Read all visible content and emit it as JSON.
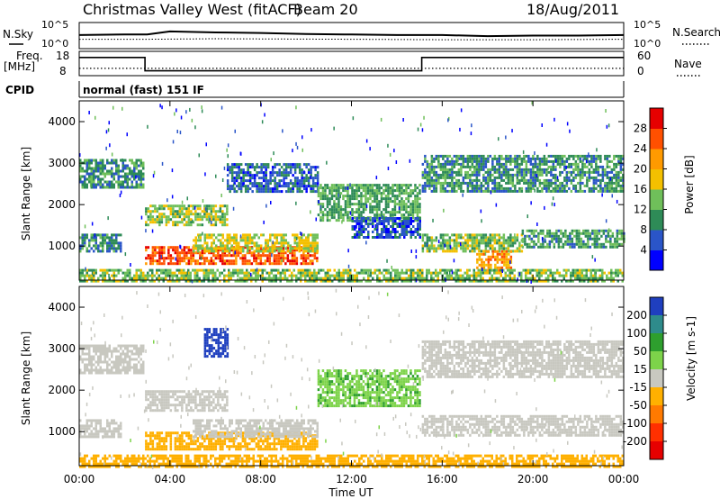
{
  "header": {
    "station": "Christmas Valley West (fitACF)",
    "beam": "Beam 20",
    "date": "18/Aug/2011"
  },
  "top_panels": {
    "nsky_label": "N.Sky",
    "nsearch_label": "N.Search",
    "noise_ticks": [
      "10^5",
      "10^0"
    ],
    "freq_label": "Freq.",
    "freq_unit": "[MHz]",
    "freq_ticks": [
      "18",
      "8"
    ],
    "nave_label": "Nave",
    "nave_ticks": [
      "60",
      "0"
    ],
    "cpid_label": "CPID",
    "cpid_text": "normal (fast) 151 IF"
  },
  "chart_data": [
    {
      "type": "line",
      "panel": "noise",
      "series": [
        {
          "name": "N.Sky",
          "x": [
            0,
            2,
            3,
            4,
            6,
            8,
            10,
            12,
            14,
            16,
            18,
            20,
            22,
            24
          ],
          "y": [
            2.6,
            2.7,
            2.7,
            3.3,
            3.1,
            3.0,
            2.8,
            2.7,
            2.6,
            2.6,
            2.4,
            2.5,
            2.5,
            2.6
          ]
        },
        {
          "name": "N.Search",
          "x": [
            0,
            3,
            6,
            12,
            16,
            20,
            24
          ],
          "y": [
            1.8,
            1.8,
            1.9,
            1.8,
            1.7,
            1.7,
            1.8
          ]
        }
      ],
      "xlim": [
        0,
        24
      ],
      "ylim": [
        0,
        5
      ],
      "yscale": "log"
    },
    {
      "type": "line",
      "panel": "frequency",
      "series": [
        {
          "name": "Freq.",
          "x": [
            0,
            2.9,
            2.9,
            15.1,
            15.1,
            24
          ],
          "y": [
            15.5,
            15.5,
            10,
            10,
            15.5,
            15.5
          ]
        },
        {
          "name": "Nave",
          "x": [
            0,
            24
          ],
          "y": [
            18,
            18
          ]
        }
      ],
      "xlim": [
        0,
        24
      ],
      "ylim": [
        8,
        18
      ],
      "y2lim": [
        0,
        60
      ]
    },
    {
      "type": "heatmap",
      "panel": "power",
      "ylabel": "Slant Range [km]",
      "yticks": [
        "1000",
        "2000",
        "3000",
        "4000"
      ],
      "xlim": [
        0,
        24
      ],
      "ylim": [
        180,
        4500
      ],
      "colorbar": {
        "label": "Power [dB]",
        "ticks": [
          "4",
          "8",
          "12",
          "16",
          "20",
          "24",
          "28"
        ],
        "colors": [
          "#0000ff",
          "#2a55c8",
          "#2e8b57",
          "#6fbf5a",
          "#f4c000",
          "#ff9a00",
          "#ff5000",
          "#e60000"
        ]
      },
      "regions": [
        {
          "t0": 0.0,
          "t1": 2.8,
          "r0": 2400,
          "r1": 3100,
          "v": 10
        },
        {
          "t0": 0.0,
          "t1": 1.8,
          "r0": 900,
          "r1": 1300,
          "v": 9
        },
        {
          "t0": 2.9,
          "t1": 6.5,
          "r0": 1500,
          "r1": 2000,
          "v": 15
        },
        {
          "t0": 2.9,
          "t1": 10.5,
          "r0": 600,
          "r1": 1000,
          "v": 26
        },
        {
          "t0": 5.0,
          "t1": 10.5,
          "r0": 900,
          "r1": 1300,
          "v": 16
        },
        {
          "t0": 6.5,
          "t1": 10.5,
          "r0": 2300,
          "r1": 3000,
          "v": 7
        },
        {
          "t0": 10.5,
          "t1": 15.0,
          "r0": 1600,
          "r1": 2500,
          "v": 12
        },
        {
          "t0": 12.0,
          "t1": 15.0,
          "r0": 1200,
          "r1": 1700,
          "v": 6
        },
        {
          "t0": 15.1,
          "t1": 19.5,
          "r0": 900,
          "r1": 1300,
          "v": 14
        },
        {
          "t0": 17.5,
          "t1": 19.0,
          "r0": 400,
          "r1": 900,
          "v": 22
        },
        {
          "t0": 15.1,
          "t1": 24.0,
          "r0": 2300,
          "r1": 3200,
          "v": 10
        },
        {
          "t0": 19.5,
          "t1": 24.0,
          "r0": 1000,
          "r1": 1400,
          "v": 11
        },
        {
          "t0": 0.0,
          "t1": 24.0,
          "r0": 180,
          "r1": 450,
          "v": 14
        }
      ]
    },
    {
      "type": "heatmap",
      "panel": "velocity",
      "xlabel": "Time UT",
      "ylabel": "Slant Range [km]",
      "xticks": [
        "00:00",
        "04:00",
        "08:00",
        "12:00",
        "16:00",
        "20:00",
        "00:00"
      ],
      "yticks": [
        "1000",
        "2000",
        "3000",
        "4000"
      ],
      "xlim": [
        0,
        24
      ],
      "ylim": [
        180,
        4500
      ],
      "colorbar": {
        "label": "Velocity [m s-1]",
        "ticks": [
          "200",
          "100",
          "50",
          "15",
          "-15",
          "-50",
          "-100",
          "-200"
        ],
        "colors": [
          "#1f3fbf",
          "#2e8b8b",
          "#2e9f2e",
          "#7dd34a",
          "#c8c8c0",
          "#ffb000",
          "#ff7a00",
          "#ff3000",
          "#e60000"
        ]
      },
      "regions": [
        {
          "t0": 0.0,
          "t1": 2.8,
          "r0": 2400,
          "r1": 3100,
          "v": 0
        },
        {
          "t0": 0.0,
          "t1": 1.8,
          "r0": 900,
          "r1": 1300,
          "v": 0
        },
        {
          "t0": 2.9,
          "t1": 6.5,
          "r0": 1500,
          "r1": 2000,
          "v": 0
        },
        {
          "t0": 2.9,
          "t1": 10.5,
          "r0": 600,
          "r1": 1000,
          "v": -40
        },
        {
          "t0": 5.0,
          "t1": 10.5,
          "r0": 900,
          "r1": 1300,
          "v": 0
        },
        {
          "t0": 10.5,
          "t1": 15.0,
          "r0": 1600,
          "r1": 2500,
          "v": 30
        },
        {
          "t0": 15.1,
          "t1": 24.0,
          "r0": 2300,
          "r1": 3200,
          "v": 0
        },
        {
          "t0": 15.1,
          "t1": 24.0,
          "r0": 900,
          "r1": 1400,
          "v": 0
        },
        {
          "t0": 5.5,
          "t1": 6.5,
          "r0": 2800,
          "r1": 3500,
          "v": 180
        },
        {
          "t0": 0.0,
          "t1": 24.0,
          "r0": 180,
          "r1": 450,
          "v": -40
        }
      ]
    }
  ]
}
